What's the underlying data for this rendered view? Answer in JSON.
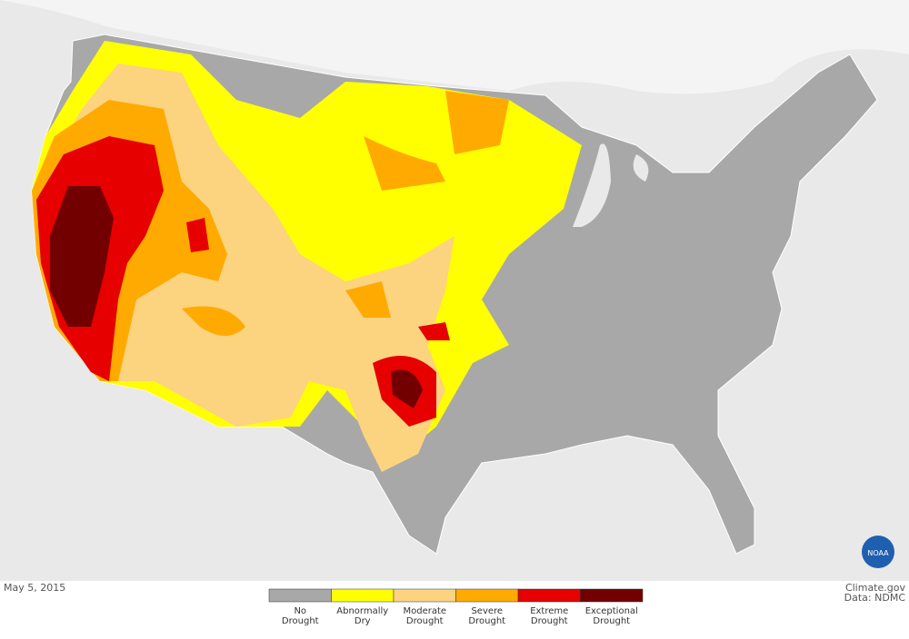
{
  "date": "May 5, 2015",
  "credit": {
    "source": "Climate.gov",
    "data": "Data: NDMC"
  },
  "logo": "NOAA",
  "legend": {
    "items": [
      {
        "lines": [
          "No",
          "Drought"
        ],
        "color": "#a8a8a8"
      },
      {
        "lines": [
          "Abnormally",
          "Dry"
        ],
        "color": "#ffff00"
      },
      {
        "lines": [
          "Moderate",
          "Drought"
        ],
        "color": "#fcd37f"
      },
      {
        "lines": [
          "Severe",
          "Drought"
        ],
        "color": "#ffaa00"
      },
      {
        "lines": [
          "Extreme",
          "Drought"
        ],
        "color": "#e60000"
      },
      {
        "lines": [
          "Exceptional",
          "Drought"
        ],
        "color": "#730000"
      }
    ]
  }
}
